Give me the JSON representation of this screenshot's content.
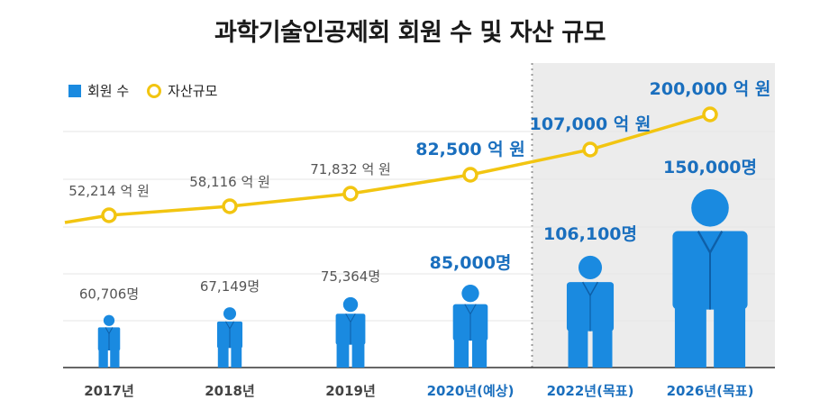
{
  "title": "과학기술인공제회 회원 수 및 자산 규모",
  "legend": {
    "members": "회원 수",
    "assets": "자산규모"
  },
  "colors": {
    "member": "#1a8ae0",
    "asset_line": "#f2c511",
    "highlight_bg": "#ececec",
    "label_gray": "#555555",
    "label_blue": "#1a6fbe"
  },
  "chart_data": {
    "type": "line",
    "categories": [
      "2017년",
      "2018년",
      "2019년",
      "2020년(예상)",
      "2022년(목표)",
      "2026년(목표)"
    ],
    "series": [
      {
        "name": "회원 수",
        "values": [
          60706,
          67149,
          75364,
          85000,
          106100,
          150000
        ],
        "labels": [
          "60,706명",
          "67,149명",
          "75,364명",
          "85,000명",
          "106,100명",
          "150,000명"
        ]
      },
      {
        "name": "자산규모",
        "values": [
          52214,
          58116,
          71832,
          82500,
          107000,
          200000
        ],
        "labels": [
          "52,214 억 원",
          "58,116 억 원",
          "71,832 억 원",
          "82,500 억 원",
          "107,000 억 원",
          "200,000 억 원"
        ]
      }
    ],
    "highlight": [
      false,
      false,
      false,
      true,
      true,
      true
    ],
    "shaded_from_index": 4
  }
}
